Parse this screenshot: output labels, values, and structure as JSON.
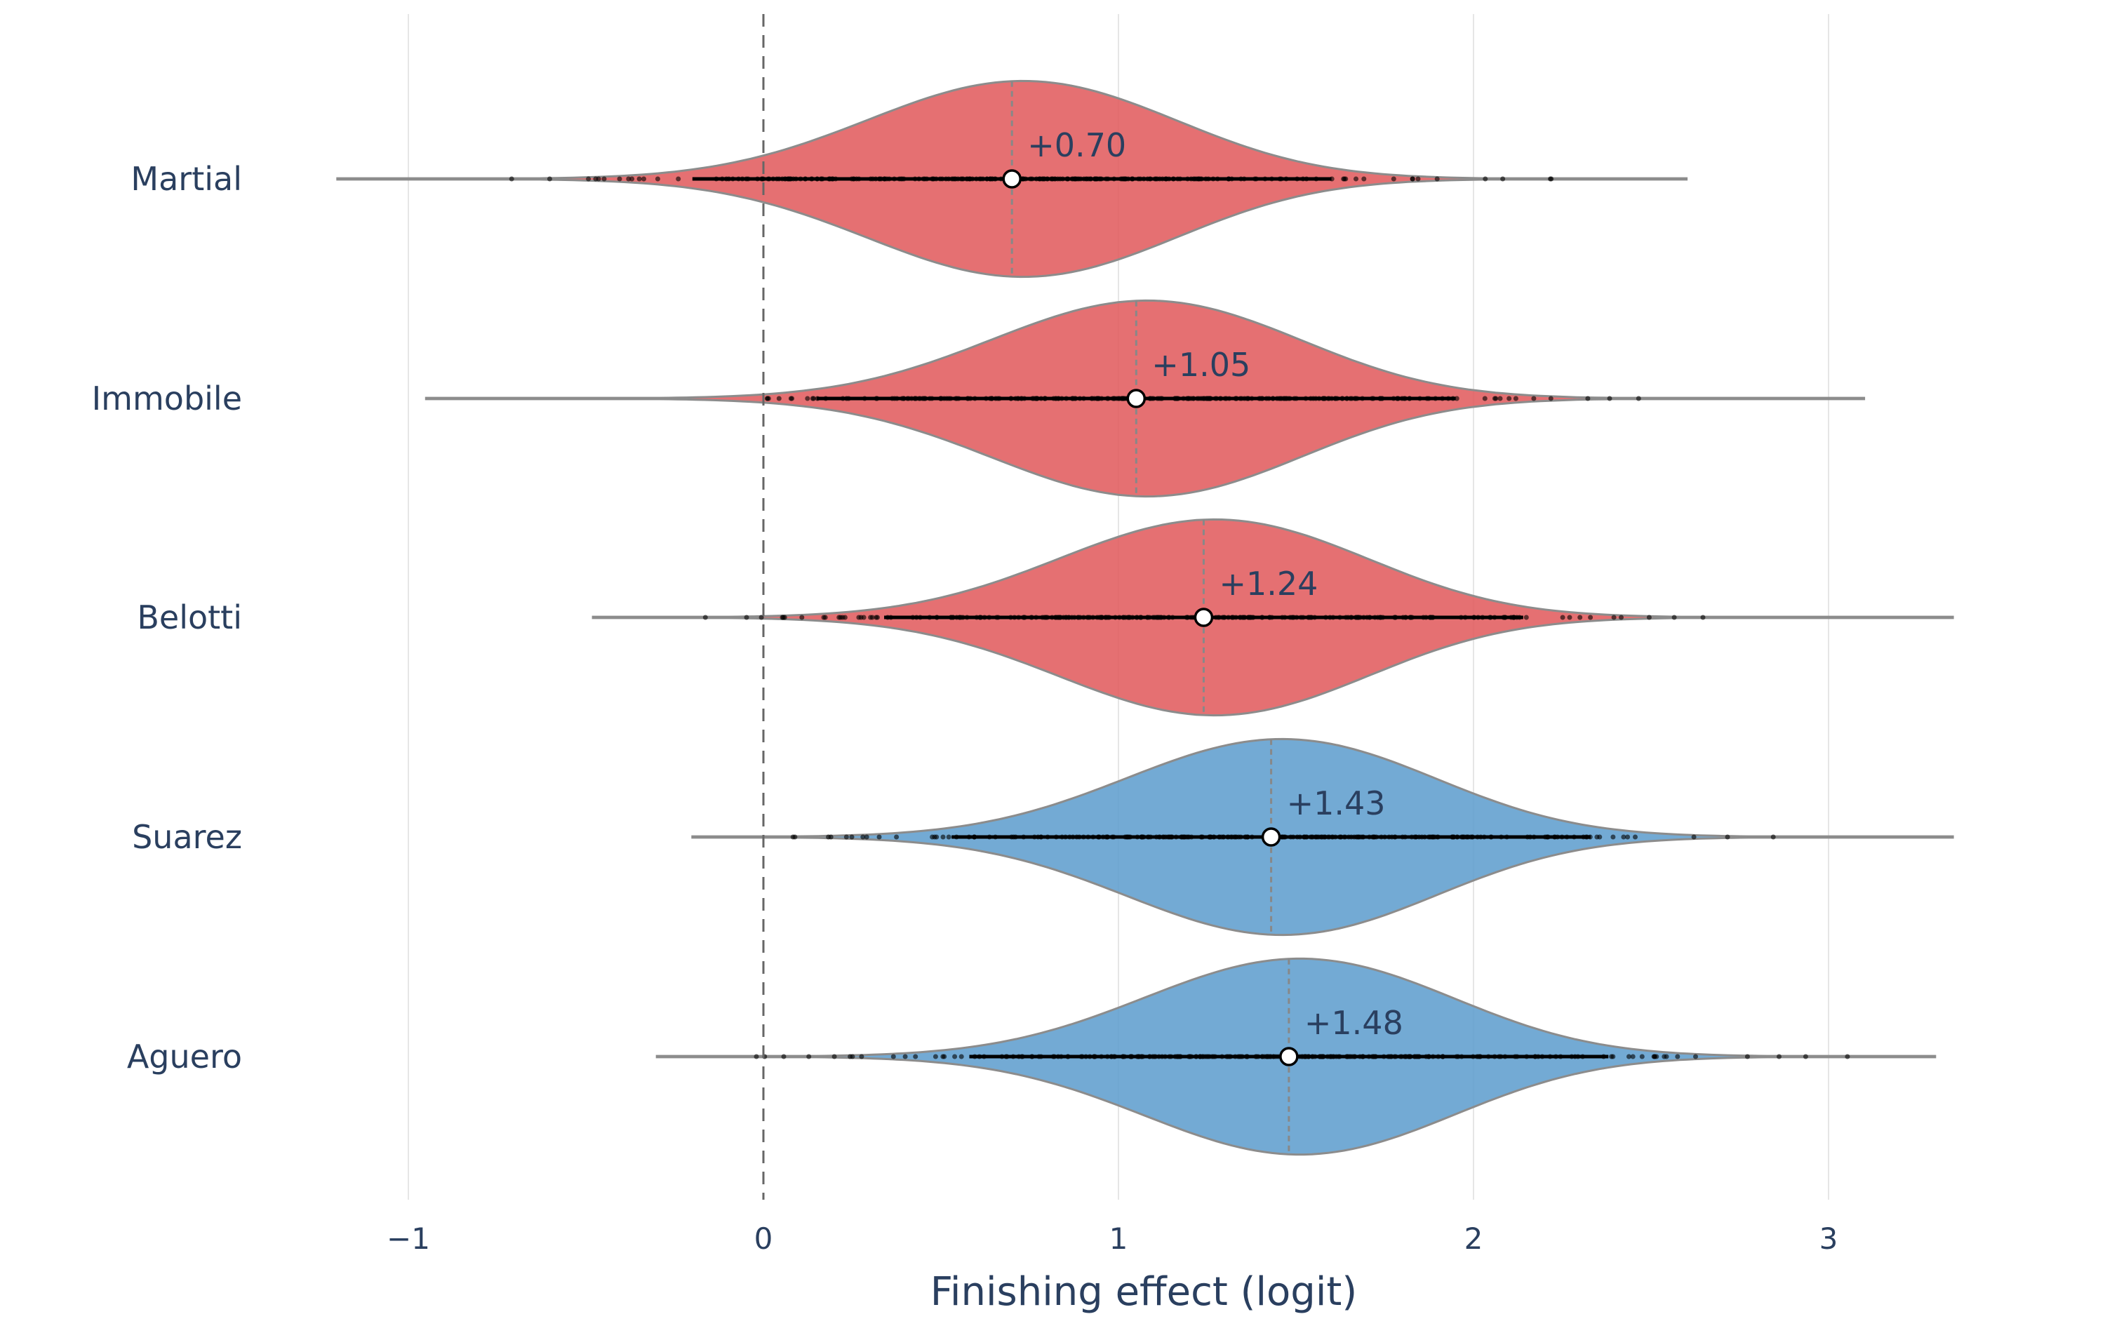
{
  "chart_data": {
    "type": "violin",
    "orientation": "horizontal",
    "title": "",
    "xlabel": "Finishing effect (logit)",
    "ylabel": "",
    "xlim": [
      -1.5,
      3.35
    ],
    "xticks": [
      -1,
      0,
      1,
      2,
      3
    ],
    "xtick_labels": [
      "−1",
      "0",
      "1",
      "2",
      "3"
    ],
    "reference_line": {
      "x": 0,
      "style": "dashed"
    },
    "grid": "vertical gridlines on",
    "colors": {
      "negative_group": "#e15759",
      "positive_group": "#5a9bcc",
      "outline": "#8c8c8c"
    },
    "series": [
      {
        "name": "Martial",
        "mean": 0.7,
        "mean_label": "+0.70",
        "min": -1.2,
        "max": 2.6,
        "color": "#e15759"
      },
      {
        "name": "Immobile",
        "mean": 1.05,
        "mean_label": "+1.05",
        "min": -0.95,
        "max": 3.1,
        "color": "#e15759"
      },
      {
        "name": "Belotti",
        "mean": 1.24,
        "mean_label": "+1.24",
        "min": -0.48,
        "max": 3.35,
        "color": "#e15759"
      },
      {
        "name": "Suarez",
        "mean": 1.43,
        "mean_label": "+1.43",
        "min": -0.2,
        "max": 3.35,
        "color": "#5a9bcc"
      },
      {
        "name": "Aguero",
        "mean": 1.48,
        "mean_label": "+1.48",
        "min": -0.3,
        "max": 3.3,
        "color": "#5a9bcc"
      }
    ]
  }
}
